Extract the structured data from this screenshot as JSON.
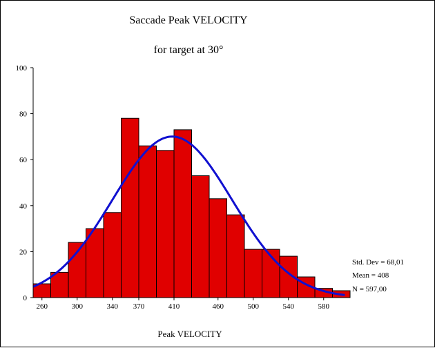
{
  "chart_data": {
    "type": "bar",
    "title": "Saccade Peak VELOCITY",
    "subtitle": "for target at 30°",
    "xlabel": "Peak VELOCITY",
    "ylabel": "",
    "x_tick_labels": [
      "260",
      "300",
      "340",
      "370",
      "410",
      "460",
      "500",
      "540",
      "580"
    ],
    "y_tick_labels": [
      "0",
      "20",
      "40",
      "60",
      "80",
      "100"
    ],
    "ylim": [
      0,
      100
    ],
    "bins": [
      {
        "start": 250,
        "end": 270,
        "count": 6
      },
      {
        "start": 270,
        "end": 290,
        "count": 11
      },
      {
        "start": 290,
        "end": 310,
        "count": 24
      },
      {
        "start": 310,
        "end": 330,
        "count": 30
      },
      {
        "start": 330,
        "end": 350,
        "count": 37
      },
      {
        "start": 350,
        "end": 370,
        "count": 78
      },
      {
        "start": 370,
        "end": 390,
        "count": 66
      },
      {
        "start": 390,
        "end": 410,
        "count": 64
      },
      {
        "start": 410,
        "end": 430,
        "count": 73
      },
      {
        "start": 430,
        "end": 450,
        "count": 53
      },
      {
        "start": 450,
        "end": 470,
        "count": 43
      },
      {
        "start": 470,
        "end": 490,
        "count": 36
      },
      {
        "start": 490,
        "end": 510,
        "count": 21
      },
      {
        "start": 510,
        "end": 530,
        "count": 21
      },
      {
        "start": 530,
        "end": 550,
        "count": 18
      },
      {
        "start": 550,
        "end": 570,
        "count": 9
      },
      {
        "start": 570,
        "end": 590,
        "count": 4
      },
      {
        "start": 590,
        "end": 610,
        "count": 3
      }
    ],
    "normal_curve": {
      "mean": 408,
      "std_dev": 68.01,
      "n": 597,
      "bin_width": 20
    },
    "stats": {
      "std_dev": "Std. Dev = 68,01",
      "mean": "Mean = 408",
      "n": "N = 597,00"
    },
    "colors": {
      "bar_fill": "#e00000",
      "bar_stroke": "#000000",
      "curve": "#1010d0"
    }
  }
}
